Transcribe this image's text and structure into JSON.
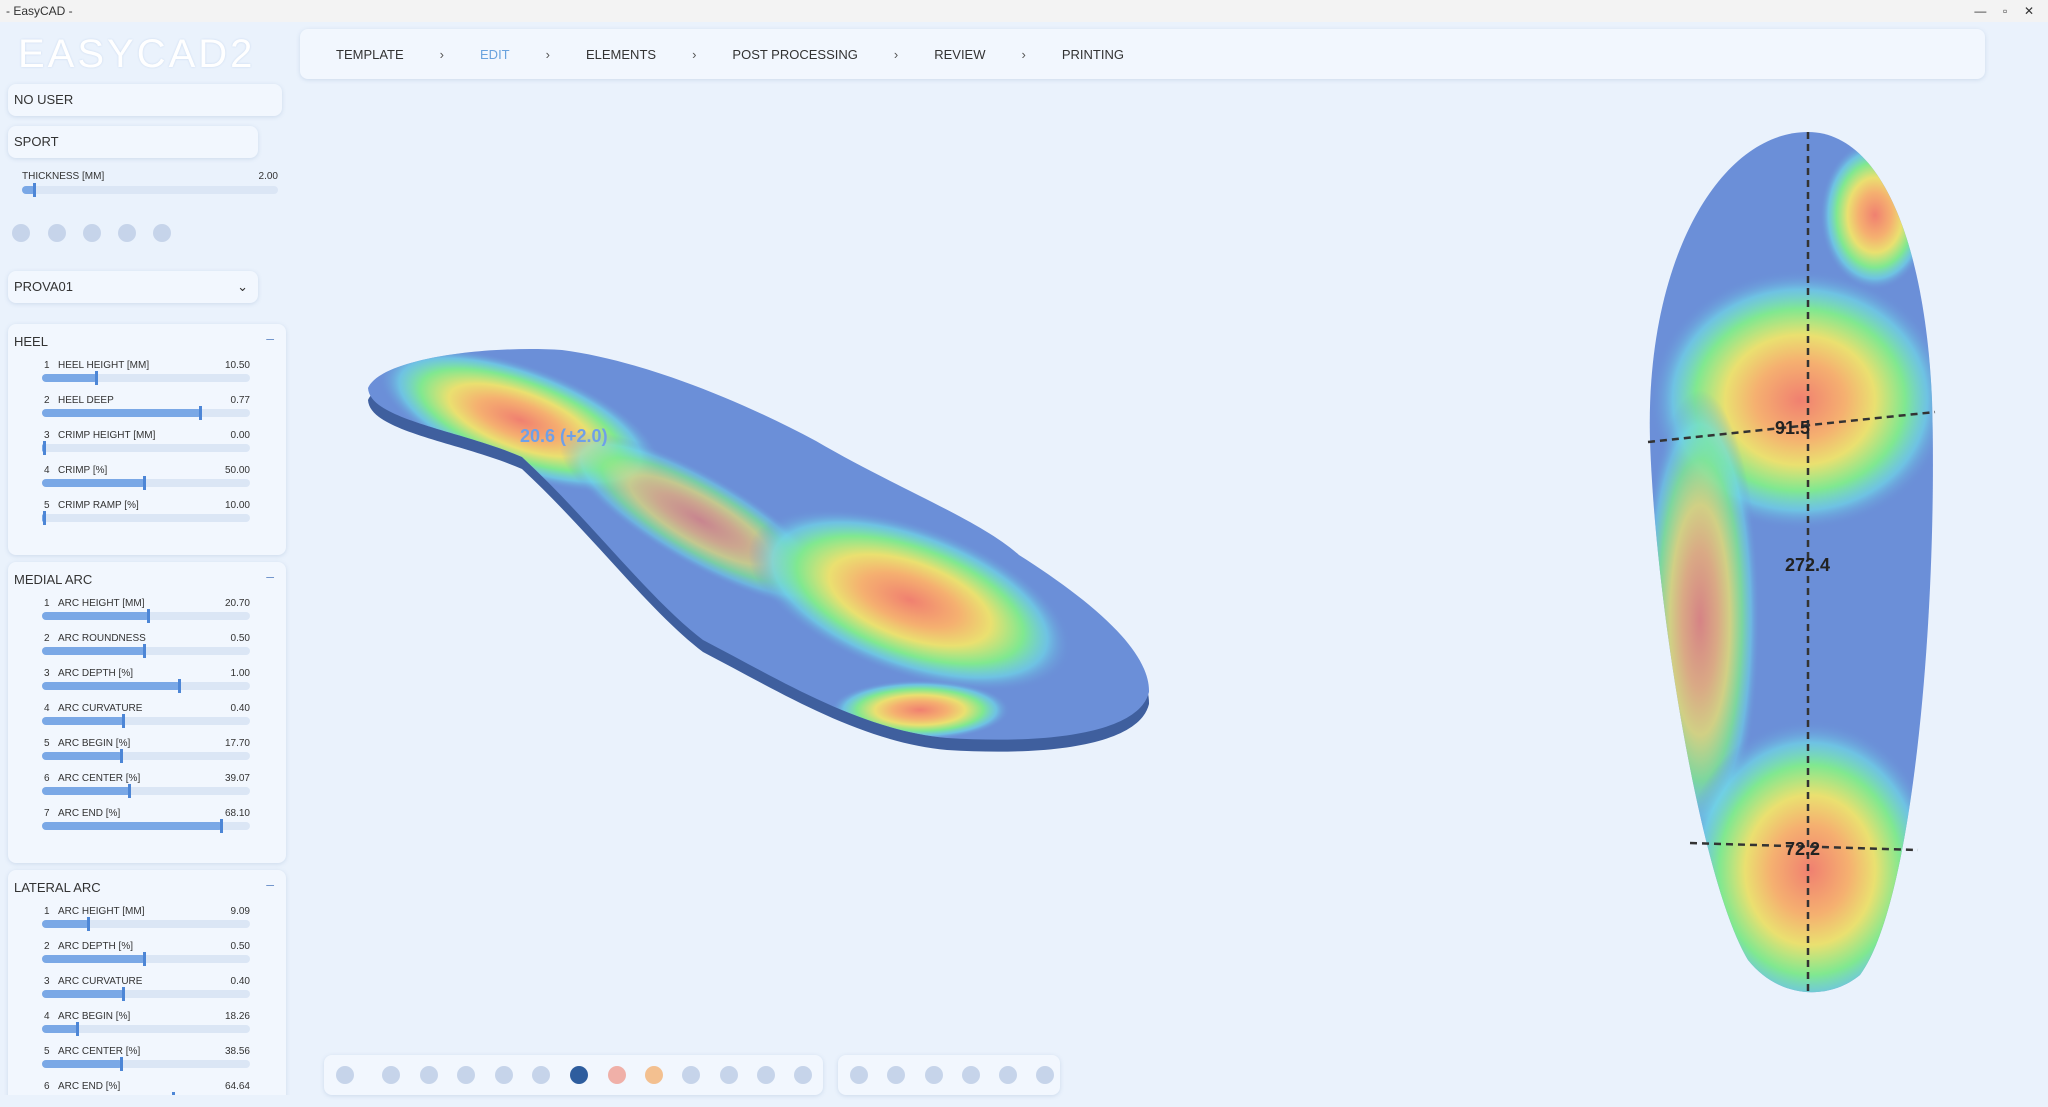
{
  "window": {
    "title": "- EasyCAD -"
  },
  "logo": "EASYCAD2",
  "steps": [
    "TEMPLATE",
    "EDIT",
    "ELEMENTS",
    "POST PROCESSING",
    "REVIEW",
    "PRINTING"
  ],
  "user": "NO USER",
  "profile": "SPORT",
  "thickness": {
    "label": "THICKNESS [MM]",
    "value": "2.00"
  },
  "project": "PROVA01",
  "sections": [
    {
      "title": "HEEL",
      "params": [
        {
          "n": "1",
          "label": "HEEL HEIGHT [MM]",
          "value": "10.50"
        },
        {
          "n": "2",
          "label": "HEEL DEEP",
          "value": "0.77"
        },
        {
          "n": "3",
          "label": "CRIMP HEIGHT [MM]",
          "value": "0.00"
        },
        {
          "n": "4",
          "label": "CRIMP [%]",
          "value": "50.00"
        },
        {
          "n": "5",
          "label": "CRIMP RAMP [%]",
          "value": "10.00"
        }
      ]
    },
    {
      "title": "MEDIAL ARC",
      "params": [
        {
          "n": "1",
          "label": "ARC HEIGHT [MM]",
          "value": "20.70"
        },
        {
          "n": "2",
          "label": "ARC ROUNDNESS",
          "value": "0.50"
        },
        {
          "n": "3",
          "label": "ARC DEPTH [%]",
          "value": "1.00"
        },
        {
          "n": "4",
          "label": "ARC CURVATURE",
          "value": "0.40"
        },
        {
          "n": "5",
          "label": "ARC BEGIN [%]",
          "value": "17.70"
        },
        {
          "n": "6",
          "label": "ARC CENTER [%]",
          "value": "39.07"
        },
        {
          "n": "7",
          "label": "ARC END [%]",
          "value": "68.10"
        }
      ]
    },
    {
      "title": "LATERAL ARC",
      "params": [
        {
          "n": "1",
          "label": "ARC HEIGHT [MM]",
          "value": "9.09"
        },
        {
          "n": "2",
          "label": "ARC DEPTH [%]",
          "value": "0.50"
        },
        {
          "n": "3",
          "label": "ARC CURVATURE",
          "value": "0.40"
        },
        {
          "n": "4",
          "label": "ARC BEGIN [%]",
          "value": "18.26"
        },
        {
          "n": "5",
          "label": "ARC CENTER [%]",
          "value": "38.56"
        },
        {
          "n": "6",
          "label": "ARC END [%]",
          "value": "64.64"
        }
      ]
    }
  ],
  "measurements": {
    "side": "20.6 (+2.0)",
    "forefoot_width": "91.5",
    "length": "272.4",
    "heel_width": "72.2"
  }
}
